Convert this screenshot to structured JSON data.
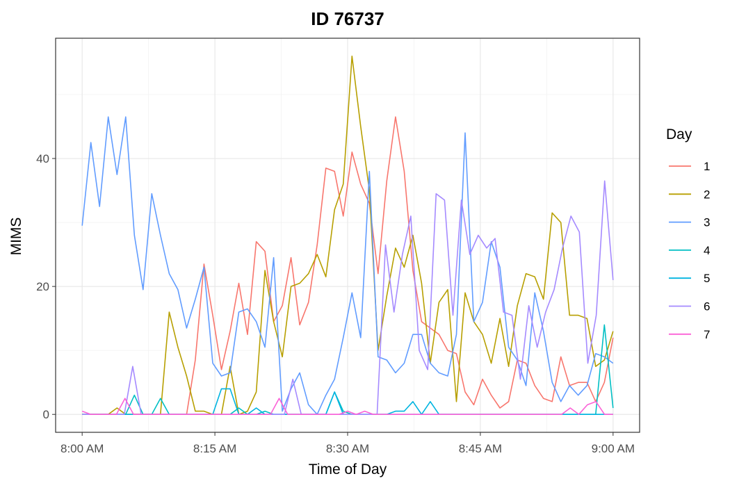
{
  "chart_data": {
    "type": "line",
    "title": "ID 76737",
    "xlabel": "Time of Day",
    "ylabel": "MIMS",
    "x_unit": "minutes",
    "x_ticks": [
      {
        "value": 0,
        "label": "8:00 AM"
      },
      {
        "value": 15,
        "label": "8:15 AM"
      },
      {
        "value": 30,
        "label": "8:30 AM"
      },
      {
        "value": 45,
        "label": "8:45 AM"
      },
      {
        "value": 60,
        "label": "9:00 AM"
      }
    ],
    "y_ticks": [
      0,
      20,
      40
    ],
    "xlim": [
      -3,
      63
    ],
    "ylim": [
      -2.8,
      58.8
    ],
    "grid": true,
    "legend": {
      "title": "Day",
      "position": "right"
    },
    "series": [
      {
        "name": "1",
        "color": "#F8766D",
        "values": [
          0,
          0,
          0,
          0,
          0,
          0,
          0,
          0,
          0,
          0,
          0,
          0,
          0,
          8.5,
          23.5,
          15.5,
          7,
          13,
          20.5,
          12.5,
          27,
          25.5,
          14.5,
          17,
          24.5,
          14,
          17.5,
          26.5,
          38.5,
          38,
          31,
          41,
          36,
          33,
          22,
          36.5,
          46.5,
          38,
          22.5,
          14.5,
          13.5,
          12.5,
          10,
          9.5,
          3.5,
          1.5,
          5.5,
          3,
          1,
          2,
          8.5,
          8,
          4.5,
          2.5,
          2,
          9,
          4.5,
          5,
          5,
          2,
          5,
          12
        ]
      },
      {
        "name": "2",
        "color": "#B79F00",
        "values": [
          0,
          0,
          0,
          0,
          1,
          0,
          0,
          0,
          0,
          0,
          16,
          10.5,
          6,
          0.5,
          0.5,
          0,
          0,
          7.5,
          0,
          0.5,
          3.5,
          22.5,
          14.5,
          9,
          20,
          20.5,
          22,
          25,
          21.5,
          32,
          36,
          56,
          45,
          35,
          10,
          18.5,
          26,
          23,
          28,
          20.5,
          8,
          17.5,
          19.5,
          2,
          19,
          14.5,
          12.5,
          8,
          15,
          7.5,
          17,
          22,
          21.5,
          18,
          31.5,
          30,
          15.5,
          15.5,
          15,
          7.5,
          8.5,
          13
        ]
      },
      {
        "name": "3",
        "color": "#619CFF",
        "values": [
          29.5,
          42.5,
          32.5,
          46.5,
          37.5,
          46.5,
          28,
          19.5,
          34.5,
          28,
          22,
          19.5,
          13.5,
          18,
          23,
          8,
          6,
          6.5,
          16,
          16.5,
          14.5,
          10.5,
          24.5,
          0.5,
          4,
          6.5,
          1.5,
          0,
          3,
          5.5,
          12,
          19,
          12,
          38,
          9,
          8.5,
          6.5,
          8,
          12.5,
          12.5,
          8,
          6.5,
          6,
          12.5,
          44,
          14.5,
          17.5,
          27,
          23,
          10.5,
          8.5,
          4.5,
          19,
          13,
          5,
          2,
          4.5,
          3,
          4.5,
          9.5,
          9,
          8
        ]
      },
      {
        "name": "4",
        "color": "#00BFC4",
        "values": [
          0,
          0,
          0,
          0,
          0,
          0,
          3,
          0,
          0,
          2.5,
          0,
          0,
          0,
          0,
          0,
          0,
          0,
          0,
          1,
          0,
          0,
          0.5,
          0,
          0,
          0,
          0,
          0,
          0,
          0,
          3.5,
          0.5,
          0,
          0,
          0,
          0,
          0,
          0,
          0,
          0,
          0,
          0,
          0,
          0,
          0,
          0,
          0,
          0,
          0,
          0,
          0,
          0,
          0,
          0,
          0,
          0,
          0,
          0,
          0,
          0,
          0,
          14,
          1
        ]
      },
      {
        "name": "5",
        "color": "#00B4E0",
        "values": [
          0,
          0,
          0,
          0,
          0,
          0,
          0,
          0,
          0,
          0,
          0,
          0,
          0,
          0,
          0,
          0,
          4,
          4,
          0,
          0,
          1,
          0,
          0,
          0,
          0,
          0,
          0,
          0,
          0,
          3.5,
          0,
          0,
          0,
          0,
          0,
          0,
          0.5,
          0.5,
          2,
          0,
          2,
          0,
          0,
          0,
          0,
          0,
          0,
          0,
          0,
          0,
          0,
          0,
          0,
          0,
          0,
          0,
          0,
          0,
          0,
          0,
          0,
          0
        ]
      },
      {
        "name": "6",
        "color": "#A58AFF",
        "values": [
          0,
          0,
          0,
          0,
          0,
          0,
          7.5,
          0,
          0,
          0,
          0,
          0,
          0,
          0,
          0,
          0,
          0,
          0,
          0,
          0,
          0,
          0,
          0,
          0,
          0,
          5.5,
          0,
          0,
          0,
          0,
          0,
          0,
          0,
          0,
          0,
          0,
          26.5,
          16,
          25,
          31,
          10,
          7,
          34.5,
          33.5,
          15.5,
          33.5,
          25,
          28,
          26,
          27.5,
          16,
          15.5,
          5.5,
          17,
          10.5,
          16,
          19.5,
          26,
          31,
          28.5,
          8,
          15.5,
          36.5,
          21
        ]
      },
      {
        "name": "7",
        "color": "#FB61D7",
        "values": [
          0.5,
          0,
          0,
          0,
          0,
          2.5,
          0,
          0,
          0,
          0,
          0,
          0,
          0,
          0,
          0,
          0,
          0,
          0,
          0,
          0,
          0,
          0,
          0,
          2.5,
          0,
          0,
          0,
          0,
          0,
          0,
          0,
          0.5,
          0,
          0.5,
          0,
          0,
          0,
          0,
          0,
          0,
          0,
          0,
          0,
          0,
          0,
          0,
          0,
          0,
          0,
          0,
          0,
          0,
          0,
          0,
          0,
          0,
          0,
          1,
          0,
          1.5,
          2,
          0,
          0
        ]
      }
    ]
  }
}
